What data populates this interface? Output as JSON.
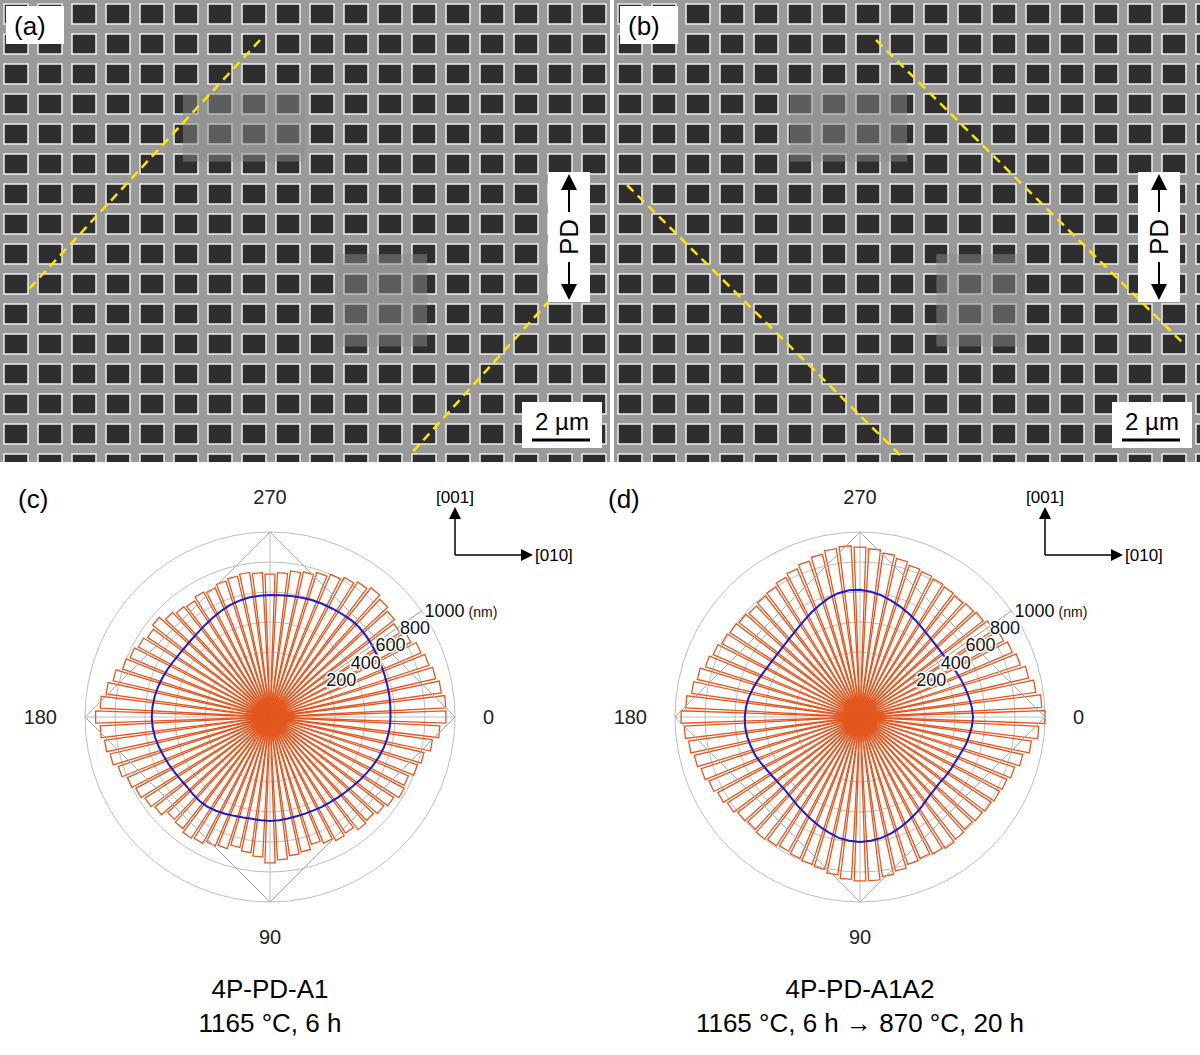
{
  "images": [
    {
      "label": "(a)",
      "direction_label": "PD",
      "scale_bar": "2 µm"
    },
    {
      "label": "(b)",
      "direction_label": "PD",
      "scale_bar": "2 µm"
    }
  ],
  "chart_data": [
    {
      "type": "polar_bar",
      "label": "(c)",
      "title": "4P-PD-A1",
      "subtitle": "1165 °C, 6 h",
      "annotations": [
        "[001]",
        "[010]"
      ],
      "x": [
        0,
        5,
        10,
        15,
        20,
        25,
        30,
        35,
        40,
        45,
        50,
        55,
        60,
        65,
        70,
        75,
        80,
        85,
        90,
        95,
        100,
        105,
        110,
        115,
        120,
        125,
        130,
        135,
        140,
        145,
        150,
        155,
        160,
        165,
        170,
        175,
        180,
        185,
        190,
        195,
        200,
        205,
        210,
        215,
        220,
        225,
        230,
        235,
        240,
        245,
        250,
        255,
        260,
        265,
        270,
        275,
        280,
        285,
        290,
        295,
        300,
        305,
        310,
        315,
        320,
        325,
        330,
        335,
        340,
        345,
        350,
        355
      ],
      "xlim": [
        0,
        360
      ],
      "xticks": [
        0,
        90,
        180,
        270
      ],
      "ylim": [
        0,
        1000
      ],
      "yticks": [
        200,
        400,
        600,
        800,
        1000
      ],
      "ylabel": "(nm)",
      "grid": true,
      "series": [
        {
          "type": "bar",
          "color": "#e2581f",
          "values": [
            940,
            900,
            860,
            820,
            800,
            770,
            780,
            750,
            730,
            710,
            720,
            690,
            700,
            680,
            660,
            690,
            700,
            720,
            740,
            700,
            680,
            660,
            690,
            700,
            720,
            730,
            710,
            700,
            740,
            760,
            780,
            800,
            830,
            860,
            880,
            900,
            930,
            900,
            870,
            840,
            800,
            780,
            760,
            740,
            760,
            720,
            700,
            690,
            710,
            700,
            720,
            730,
            740,
            730,
            720,
            730,
            750,
            760,
            780,
            800,
            820,
            840,
            860,
            840,
            820,
            800,
            830,
            860,
            880,
            900,
            920,
            940
          ]
        },
        {
          "type": "line",
          "color": "#1c1ccc",
          "values": [
            570,
            568,
            562,
            552,
            540,
            526,
            512,
            498,
            486,
            476,
            468,
            462,
            458,
            454,
            452,
            452,
            454,
            457,
            460,
            458,
            456,
            460,
            468,
            478,
            488,
            496,
            498,
            494,
            490,
            494,
            502,
            512,
            522,
            534,
            545,
            552,
            555,
            553,
            548,
            540,
            530,
            520,
            510,
            503,
            500,
            502,
            508,
            518,
            530,
            545,
            558,
            568,
            575,
            578,
            580,
            582,
            585,
            590,
            595,
            598,
            600,
            605,
            610,
            610,
            605,
            598,
            590,
            585,
            580,
            577,
            575,
            572
          ]
        }
      ]
    },
    {
      "type": "polar_bar",
      "label": "(d)",
      "title": "4P-PD-A1A2",
      "subtitle": "1165 °C, 6 h → 870 °C, 20 h",
      "annotations": [
        "[001]",
        "[010]"
      ],
      "x": [
        0,
        5,
        10,
        15,
        20,
        25,
        30,
        35,
        40,
        45,
        50,
        55,
        60,
        65,
        70,
        75,
        80,
        85,
        90,
        95,
        100,
        105,
        110,
        115,
        120,
        125,
        130,
        135,
        140,
        145,
        150,
        155,
        160,
        165,
        170,
        175,
        180,
        185,
        190,
        195,
        200,
        205,
        210,
        215,
        220,
        225,
        230,
        235,
        240,
        245,
        250,
        255,
        260,
        265,
        270,
        275,
        280,
        285,
        290,
        295,
        300,
        305,
        310,
        315,
        320,
        325,
        330,
        335,
        340,
        345,
        350,
        355
      ],
      "xlim": [
        0,
        360
      ],
      "xticks": [
        0,
        90,
        180,
        270
      ],
      "ylim": [
        0,
        1000
      ],
      "yticks": [
        200,
        400,
        600,
        800,
        1000
      ],
      "ylabel": "(nm)",
      "grid": true,
      "series": [
        {
          "type": "bar",
          "color": "#e2581f",
          "values": [
            1000,
            960,
            920,
            880,
            850,
            830,
            820,
            810,
            800,
            790,
            800,
            810,
            800,
            790,
            800,
            820,
            840,
            860,
            860,
            850,
            830,
            810,
            800,
            790,
            780,
            790,
            800,
            790,
            800,
            820,
            840,
            860,
            880,
            900,
            920,
            940,
            960,
            930,
            900,
            880,
            850,
            830,
            810,
            800,
            790,
            780,
            790,
            800,
            820,
            840,
            860,
            880,
            900,
            910,
            900,
            890,
            870,
            850,
            830,
            820,
            810,
            800,
            790,
            800,
            810,
            830,
            850,
            870,
            890,
            920,
            950,
            980
          ]
        },
        {
          "type": "line",
          "color": "#1c1ccc",
          "values": [
            520,
            515,
            505,
            495,
            480,
            470,
            465,
            460,
            455,
            460,
            470,
            490,
            510,
            530,
            550,
            570,
            585,
            595,
            600,
            595,
            585,
            565,
            545,
            525,
            505,
            490,
            475,
            465,
            465,
            470,
            480,
            495,
            510,
            520,
            530,
            535,
            535,
            530,
            520,
            505,
            490,
            475,
            465,
            460,
            460,
            465,
            475,
            490,
            510,
            535,
            560,
            585,
            605,
            615,
            615,
            605,
            590,
            570,
            550,
            530,
            510,
            490,
            475,
            465,
            460,
            460,
            465,
            475,
            485,
            495,
            505,
            515
          ]
        }
      ]
    }
  ]
}
